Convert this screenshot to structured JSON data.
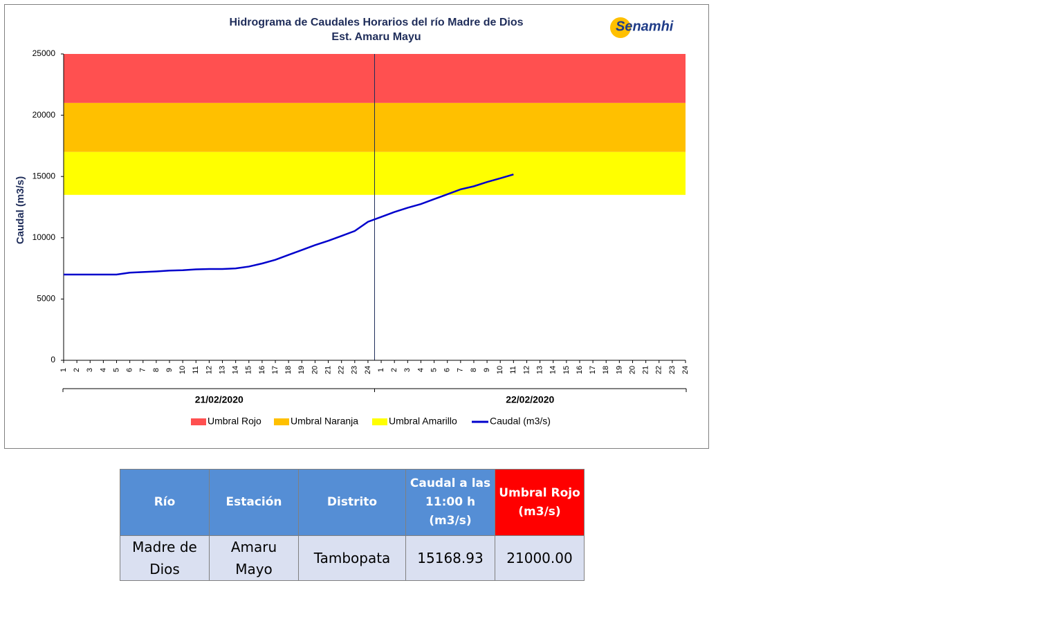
{
  "chart_data": {
    "type": "line",
    "title": "Hidrograma de Caudales Horarios del río Madre de Dios",
    "subtitle": "Est. Amaru Mayu",
    "logo": "Senamhi",
    "ylabel": "Caudal (m3/s)",
    "ylim": [
      0,
      25000
    ],
    "yticks": [
      0,
      5000,
      10000,
      15000,
      20000,
      25000
    ],
    "categories": [
      1,
      2,
      3,
      4,
      5,
      6,
      7,
      8,
      9,
      10,
      11,
      12,
      13,
      14,
      15,
      16,
      17,
      18,
      19,
      20,
      21,
      22,
      23,
      24,
      1,
      2,
      3,
      4,
      5,
      6,
      7,
      8,
      9,
      10,
      11,
      12,
      13,
      14,
      15,
      16,
      17,
      18,
      19,
      20,
      21,
      22,
      23,
      24
    ],
    "groups": [
      "21/02/2020",
      "22/02/2020"
    ],
    "series": [
      {
        "name": "Umbral Rojo",
        "color": "#ff5050",
        "range": [
          21000,
          25000
        ]
      },
      {
        "name": "Umbral Naranja",
        "color": "#ffc000",
        "range": [
          17000,
          21000
        ]
      },
      {
        "name": "Umbral Amarillo",
        "color": "#ffff00",
        "range": [
          13500,
          17000
        ]
      },
      {
        "name": "Caudal (m3/s)",
        "color": "#0000cc",
        "values": [
          7000,
          7000,
          7000,
          7000,
          7000,
          7150,
          7200,
          7250,
          7320,
          7350,
          7420,
          7450,
          7450,
          7500,
          7650,
          7900,
          8200,
          8600,
          9000,
          9400,
          9750,
          10150,
          10550,
          11300,
          11700,
          12100,
          12450,
          12750,
          13150,
          13550,
          13950,
          14200,
          14550,
          14850,
          15168.93,
          null,
          null,
          null,
          null,
          null,
          null,
          null,
          null,
          null,
          null,
          null,
          null,
          null
        ]
      }
    ]
  },
  "table": {
    "header": [
      "Río",
      "Estación",
      "Distrito",
      "Caudal a las 11:00 h (m3/s)",
      "Umbral Rojo (m3/s)"
    ],
    "rows": [
      [
        "Madre de Dios",
        "Amaru Mayo",
        "Tambopata",
        "15168.93",
        "21000.00"
      ]
    ]
  }
}
